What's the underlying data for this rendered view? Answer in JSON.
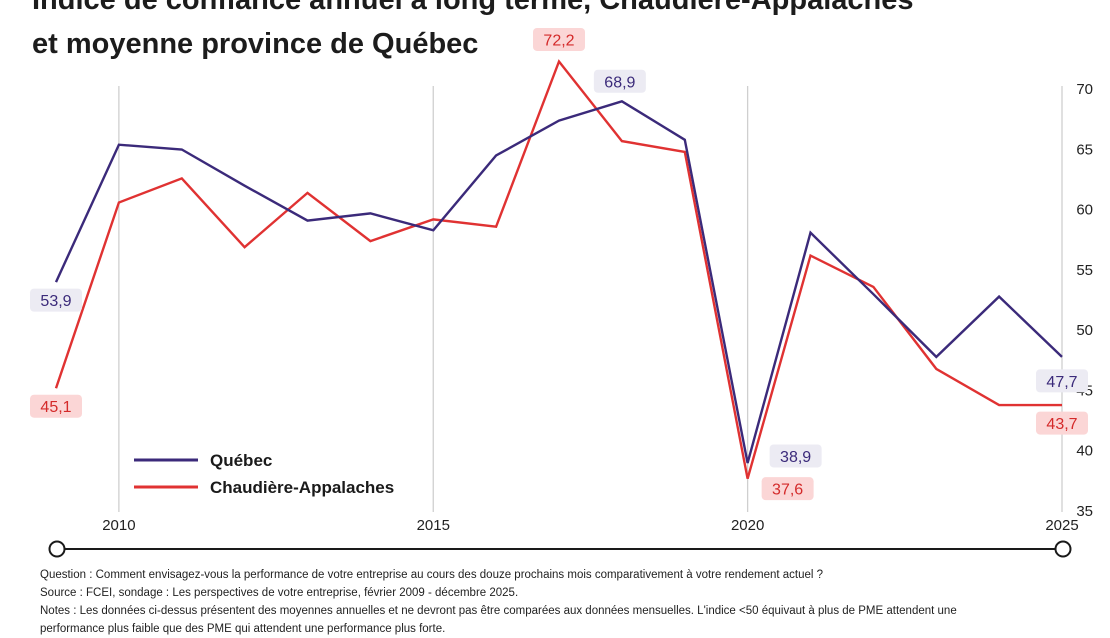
{
  "title": {
    "line1": "Indice de confiance annuel à long terme, Chaudière-Appalaches",
    "line2": "et moyenne province de Québec"
  },
  "chart_data": {
    "type": "line",
    "title": "Indice de confiance annuel à long terme, Chaudière-Appalaches et moyenne province de Québec",
    "xlabel": "",
    "ylabel": "",
    "xlim": [
      2009,
      2025
    ],
    "ylim": [
      35,
      72
    ],
    "y_ticks": [
      35,
      40,
      45,
      50,
      55,
      60,
      65,
      70
    ],
    "x_ticks": [
      2010,
      2015,
      2020,
      2025
    ],
    "grid": "vertical lines at x ticks",
    "legend_position": "bottom-left",
    "x": [
      2009,
      2010,
      2011,
      2012,
      2013,
      2014,
      2015,
      2016,
      2017,
      2018,
      2019,
      2020,
      2021,
      2022,
      2023,
      2024,
      2025
    ],
    "series": [
      {
        "name": "Québec",
        "color": "#3b2a7a",
        "values": [
          53.9,
          65.3,
          64.9,
          61.9,
          59.0,
          59.6,
          58.2,
          64.4,
          67.3,
          68.9,
          65.7,
          38.9,
          58.0,
          52.9,
          47.7,
          52.7,
          47.7
        ]
      },
      {
        "name": "Chaudière-Appalaches",
        "color": "#e03232",
        "values": [
          45.1,
          60.5,
          62.5,
          56.8,
          61.3,
          57.3,
          59.1,
          58.5,
          72.2,
          65.6,
          64.7,
          37.6,
          56.1,
          53.5,
          46.7,
          43.7,
          43.7
        ]
      }
    ],
    "annotations": [
      {
        "series": "Québec",
        "year": 2009,
        "label": "53,9"
      },
      {
        "series": "Chaudière-Appalaches",
        "year": 2009,
        "label": "45,1"
      },
      {
        "series": "Chaudière-Appalaches",
        "year": 2017,
        "label": "72,2"
      },
      {
        "series": "Québec",
        "year": 2018,
        "label": "68,9"
      },
      {
        "series": "Québec",
        "year": 2020,
        "label": "38,9"
      },
      {
        "series": "Chaudière-Appalaches",
        "year": 2020,
        "label": "37,6"
      },
      {
        "series": "Québec",
        "year": 2025,
        "label": "47,7"
      },
      {
        "series": "Chaudière-Appalaches",
        "year": 2025,
        "label": "43,7"
      }
    ]
  },
  "notes": {
    "question": "Question : Comment envisagez-vous la performance de votre entreprise au cours des douze prochains mois comparativement à votre rendement actuel ?",
    "source": "Source : FCEI, sondage : Les perspectives de votre entreprise, février 2009 - décembre 2025.",
    "notes": "Notes : Les données ci-dessus présentent des moyennes annuelles et ne devront pas être comparées aux données mensuelles. L'indice <50 équivaut à plus de PME attendent une",
    "notes_cont": "performance plus faible que des PME qui attendent une performance plus forte."
  }
}
